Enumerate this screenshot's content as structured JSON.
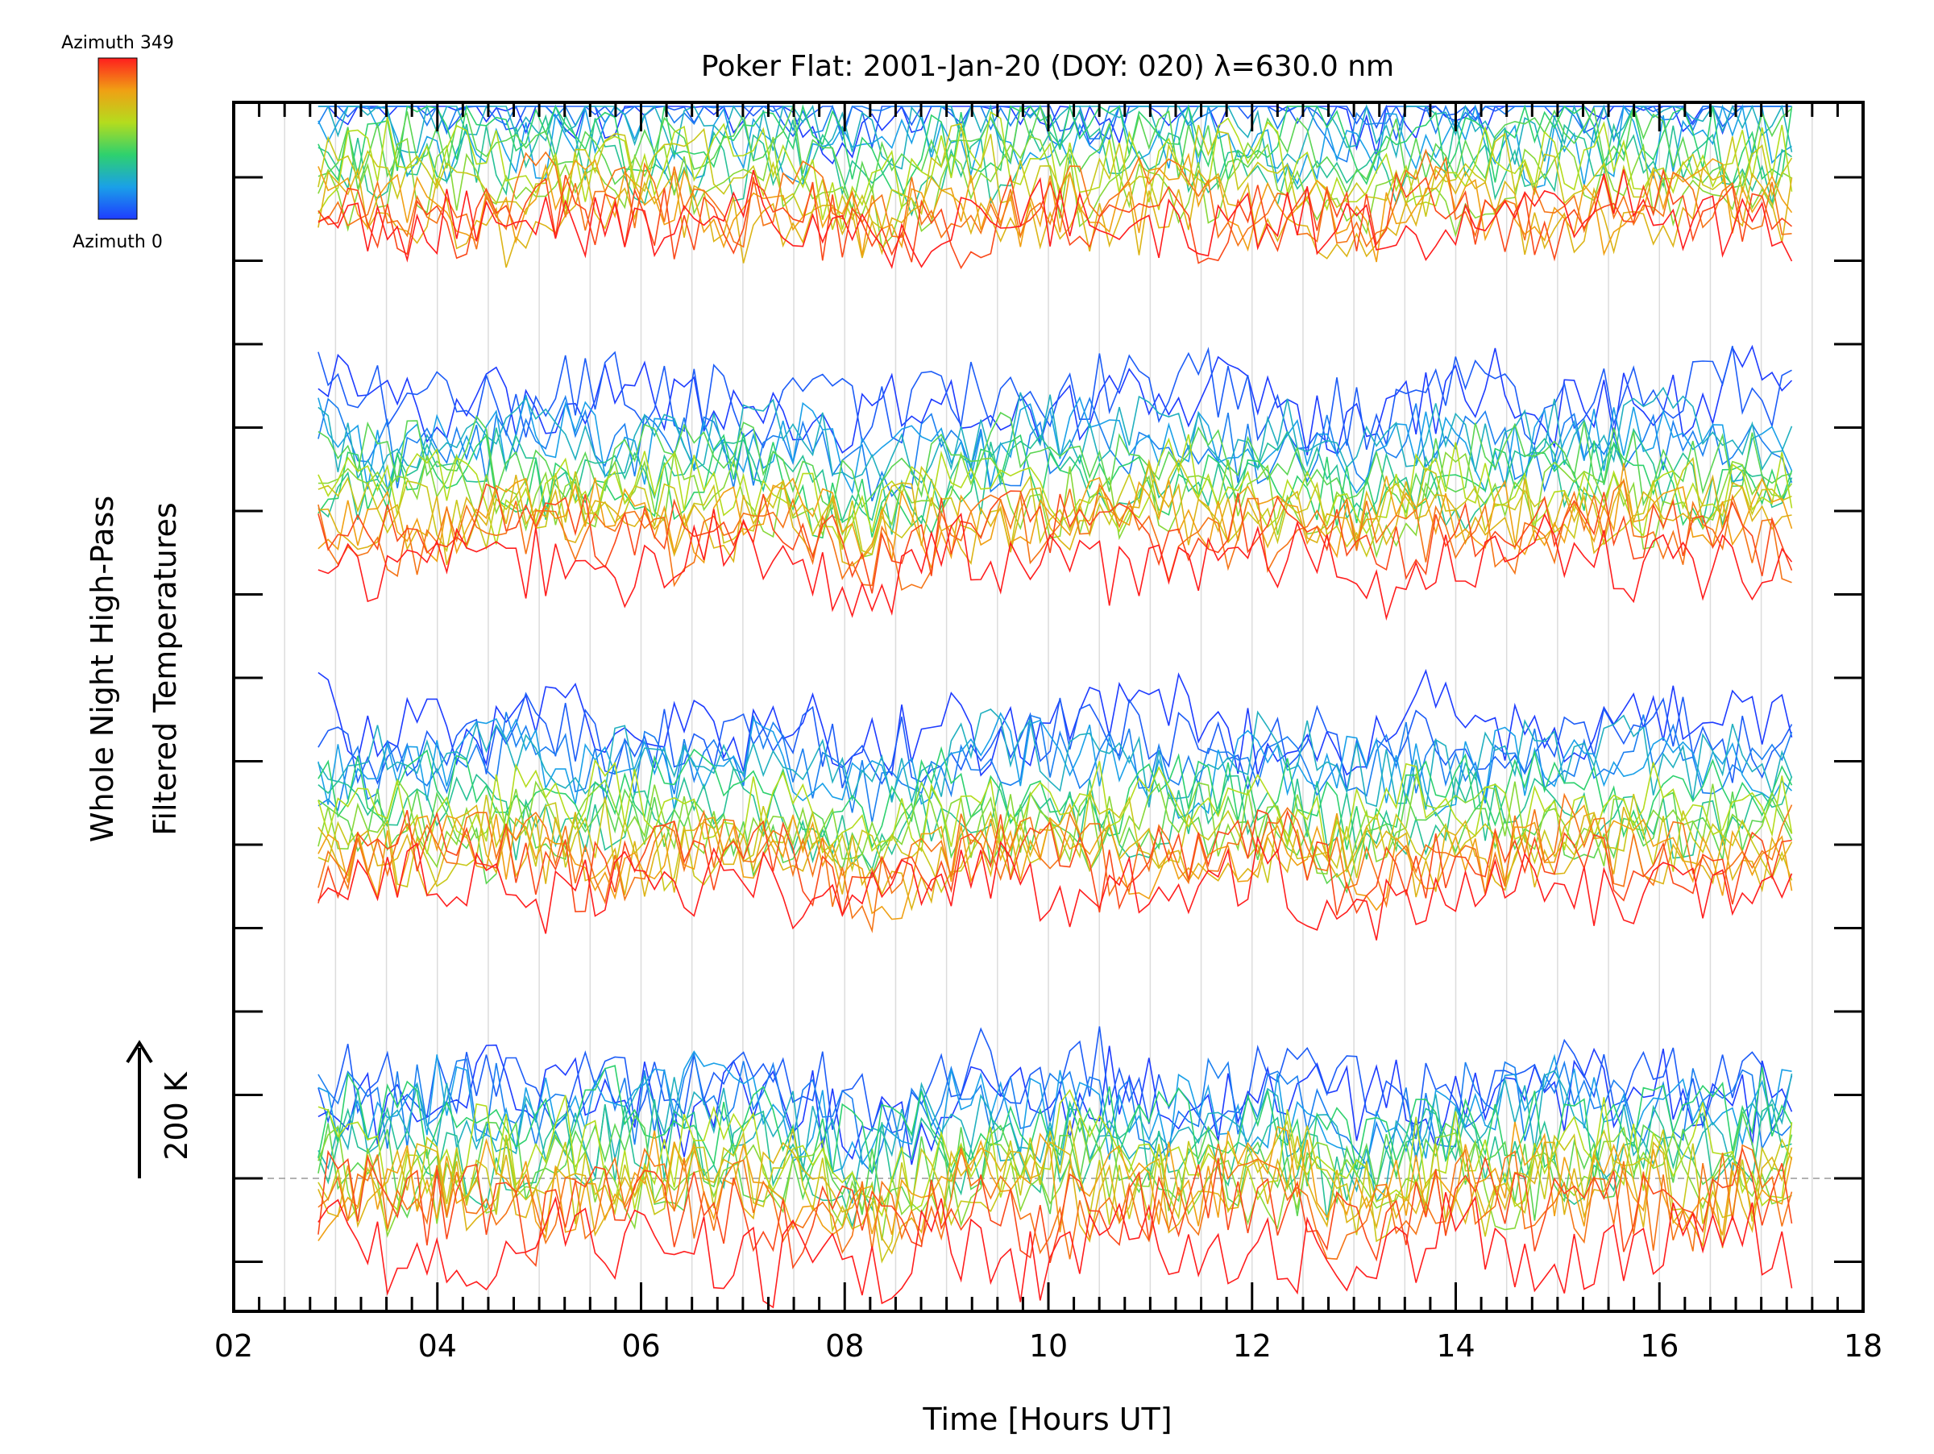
{
  "chart_data": {
    "type": "line",
    "title": "Poker Flat: 2001-Jan-20 (DOY: 020) λ=630.0 nm",
    "xlabel": "Time [Hours UT]",
    "ylabel_line1": "Whole Night High-Pass",
    "ylabel_line2": "Filtered Temperatures",
    "scale_label": "200 K",
    "xlim": [
      2,
      18
    ],
    "x_ticks": [
      "02",
      "04",
      "06",
      "08",
      "10",
      "12",
      "14",
      "16",
      "18"
    ],
    "x_data_range": [
      2.83,
      17.3
    ],
    "grid_x": true,
    "colorbar": {
      "top_label": "Azimuth 349",
      "bottom_label": "Azimuth 0",
      "placement": "top-left",
      "stops": [
        "#1e3cff",
        "#1aa0e8",
        "#2ed16e",
        "#b4dc1e",
        "#f0a014",
        "#ff1e1e"
      ]
    },
    "series_count": 64,
    "offset_step_K": 40,
    "series_note_values_shown_as_stacked_offset_traces": true
  }
}
